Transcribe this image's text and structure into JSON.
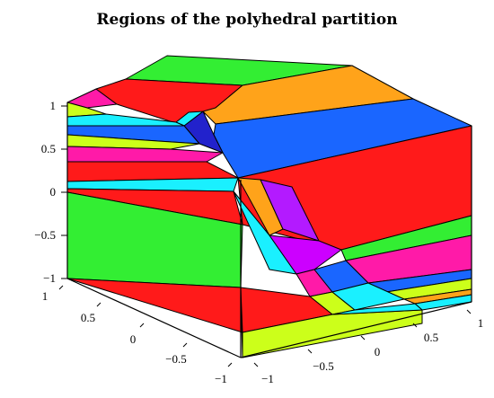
{
  "title": "Regions of the polyhedral partition",
  "z_ticks": [
    "1",
    "0.5",
    "0",
    "−0.5",
    "−1"
  ],
  "x_ticks": [
    "1",
    "0.5",
    "0",
    "−0.5",
    "−1"
  ],
  "y_ticks": [
    "−1",
    "−0.5",
    "0",
    "0.5",
    "1"
  ],
  "colors": {
    "red": "#ff1a1a",
    "green": "#33ee33",
    "blue": "#1a66ff",
    "orange": "#ffa31a",
    "magenta": "#ff1aa8",
    "purple": "#b31aff",
    "violet": "#cc00ff",
    "cyan": "#1af0ff",
    "yellow_green": "#ccff1a",
    "dark_blue": "#2222cc"
  }
}
